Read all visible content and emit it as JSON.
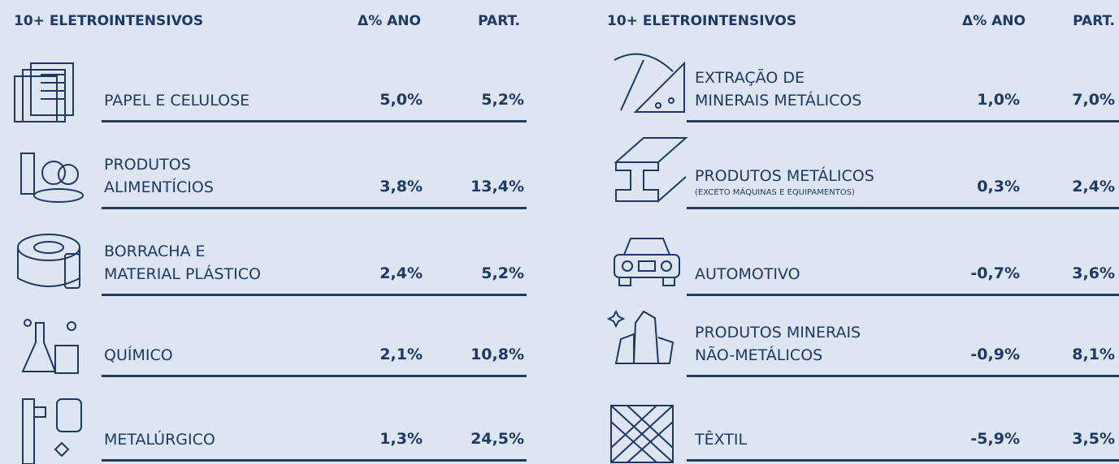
{
  "panels": [
    {
      "header": {
        "title": "10+ ELETROINTENSIVOS",
        "delta": "Δ% ANO",
        "part": "PART."
      },
      "rows": [
        {
          "label": [
            "PAPEL E CELULOSE"
          ],
          "delta": "5,0%",
          "part": "5,2%"
        },
        {
          "label": [
            "PRODUTOS",
            "ALIMENTÍCIOS"
          ],
          "delta": "3,8%",
          "part": "13,4%"
        },
        {
          "label": [
            "BORRACHA E",
            "MATERIAL PLÁSTICO"
          ],
          "delta": "2,4%",
          "part": "5,2%"
        },
        {
          "label": [
            "QUÍMICO"
          ],
          "delta": "2,1%",
          "part": "10,8%"
        },
        {
          "label": [
            "METALÚRGICO"
          ],
          "delta": "1,3%",
          "part": "24,5%"
        }
      ]
    },
    {
      "header": {
        "title": "10+ ELETROINTENSIVOS",
        "delta": "Δ% ANO",
        "part": "PART."
      },
      "rows": [
        {
          "label": [
            "EXTRAÇÃO DE",
            "MINERAIS METÁLICOS"
          ],
          "delta": "1,0%",
          "part": "7,0%"
        },
        {
          "label": [
            "PRODUTOS METÁLICOS"
          ],
          "sublabel": "(EXCETO MÁQUINAS E EQUIPAMENTOS)",
          "delta": "0,3%",
          "part": "2,4%"
        },
        {
          "label": [
            "AUTOMOTIVO"
          ],
          "delta": "-0,7%",
          "part": "3,6%"
        },
        {
          "label": [
            "PRODUTOS MINERAIS",
            "NÃO-METÁLICOS"
          ],
          "delta": "-0,9%",
          "part": "8,1%"
        },
        {
          "label": [
            "TÊXTIL"
          ],
          "delta": "-5,9%",
          "part": "3,5%"
        }
      ]
    }
  ]
}
